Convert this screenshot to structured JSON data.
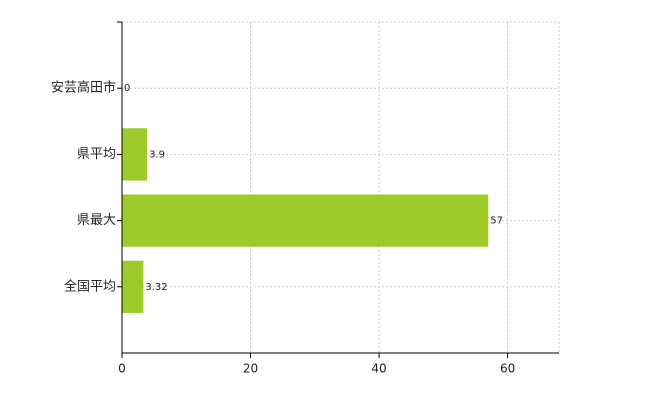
{
  "chart_data": {
    "type": "hbar",
    "categories": [
      "安芸高田市",
      "県平均",
      "県最大",
      "全国平均"
    ],
    "values": [
      0,
      3.9,
      57,
      3.32
    ],
    "color": "#9ecb2a",
    "xlim": [
      0,
      68
    ],
    "xticks": [
      0,
      20,
      40,
      60
    ],
    "grid": true
  }
}
